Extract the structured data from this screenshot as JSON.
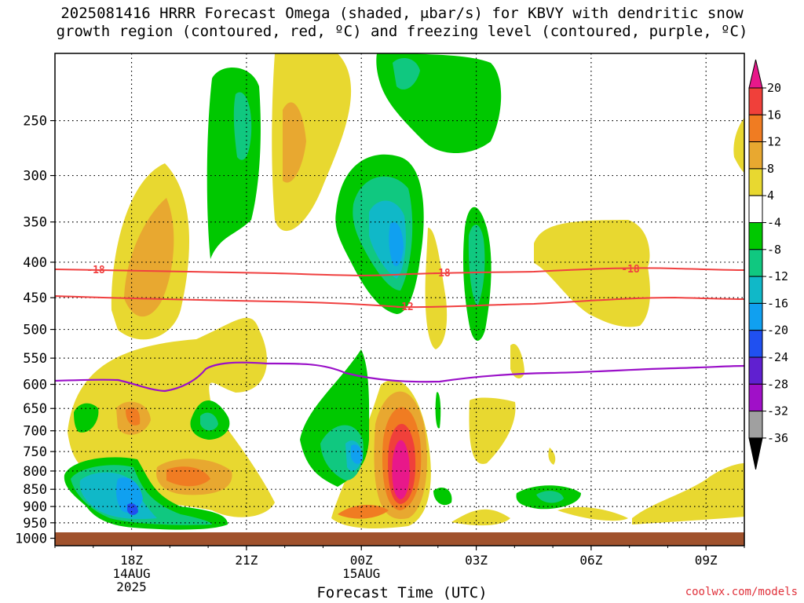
{
  "title_line1": "2025081416 HRRR Forecast Omega (shaded, μbar/s) for KBVY with dendritic snow",
  "title_line2": "growth region (contoured, red, ºC) and freezing level (contoured, purple, ºC)",
  "footer": "coolwx.com/models",
  "chart_data": {
    "type": "heatmap",
    "xlabel": "Forecast Time (UTC)",
    "x_ticks": [
      {
        "label": "18Z",
        "sub1": "14AUG",
        "sub2": "2025",
        "hour": 0
      },
      {
        "label": "21Z",
        "sub1": "",
        "sub2": "",
        "hour": 3
      },
      {
        "label": "00Z",
        "sub1": "15AUG",
        "sub2": "",
        "hour": 6
      },
      {
        "label": "03Z",
        "sub1": "",
        "sub2": "",
        "hour": 9
      },
      {
        "label": "06Z",
        "sub1": "",
        "sub2": "",
        "hour": 12
      },
      {
        "label": "09Z",
        "sub1": "",
        "sub2": "",
        "hour": 15
      }
    ],
    "x_range_hours": [
      -2,
      16
    ],
    "y_ticks": [
      250,
      300,
      350,
      400,
      450,
      500,
      550,
      600,
      650,
      700,
      750,
      800,
      850,
      900,
      950,
      1000
    ],
    "y_range_hPa": [
      200,
      1025
    ],
    "y_scale": "log-pressure",
    "colorbar": {
      "labels": [
        "20",
        "16",
        "12",
        "8",
        "4",
        "-4",
        "-8",
        "-12",
        "-16",
        "-20",
        "-24",
        "-28",
        "-32",
        "-36"
      ],
      "colors": [
        "#e8188a",
        "#f0403a",
        "#f07c22",
        "#e8a830",
        "#e8d830",
        "#ffffff",
        "#00c800",
        "#10c880",
        "#10b8c8",
        "#10a0f0",
        "#2050f0",
        "#6020d0",
        "#a010c8",
        "#a0a0a0",
        "#000000"
      ]
    },
    "dgz_labels": [
      "-18",
      "-18",
      "-18",
      "-12"
    ],
    "ground_color": "#a0522d",
    "dgz_color": "#f04040",
    "freezing_color": "#9a10c8"
  }
}
